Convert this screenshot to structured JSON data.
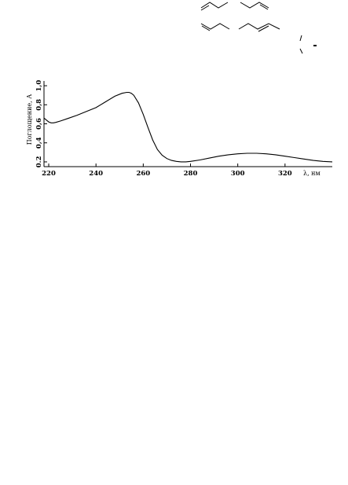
{
  "chart_data": {
    "type": "line",
    "title": "",
    "xlabel": "λ, нм",
    "ylabel": "Поглощение, А",
    "xlim": [
      218,
      340
    ],
    "ylim": [
      0.15,
      1.05
    ],
    "x_ticks": [
      220,
      240,
      260,
      280,
      300,
      320
    ],
    "y_ticks": [
      0.2,
      0.4,
      0.6,
      0.8,
      1.0
    ],
    "x_tick_labels": [
      "220",
      "240",
      "260",
      "280",
      "300",
      "320"
    ],
    "y_tick_labels": [
      "0.2",
      "0,4",
      "0,6",
      "0,8",
      "1,0"
    ],
    "grid": false,
    "series": [
      {
        "x": [
          218,
          219,
          220,
          221,
          222,
          223,
          225,
          228,
          232,
          236,
          240,
          244,
          248,
          251,
          253,
          254,
          255,
          256,
          258,
          260,
          262,
          264,
          266,
          268,
          270,
          272,
          274,
          276,
          278,
          280,
          284,
          288,
          292,
          296,
          300,
          304,
          308,
          312,
          316,
          320,
          324,
          328,
          332,
          336,
          340
        ],
        "y": [
          0.66,
          0.64,
          0.62,
          0.61,
          0.61,
          0.615,
          0.63,
          0.655,
          0.69,
          0.73,
          0.77,
          0.83,
          0.89,
          0.92,
          0.93,
          0.93,
          0.92,
          0.9,
          0.82,
          0.7,
          0.56,
          0.43,
          0.33,
          0.27,
          0.235,
          0.215,
          0.205,
          0.2,
          0.2,
          0.205,
          0.22,
          0.24,
          0.26,
          0.275,
          0.285,
          0.29,
          0.29,
          0.285,
          0.275,
          0.26,
          0.245,
          0.23,
          0.215,
          0.205,
          0.2
        ]
      }
    ]
  },
  "structures": {
    "top_row": [
      "diene-structure-1",
      "diene-structure-2"
    ],
    "bottom_row": [
      "diene-structure-3",
      "diene-structure-4"
    ],
    "side_fragment": "partial-structure"
  },
  "colors": {
    "line": "#000000",
    "background": "#ffffff"
  }
}
